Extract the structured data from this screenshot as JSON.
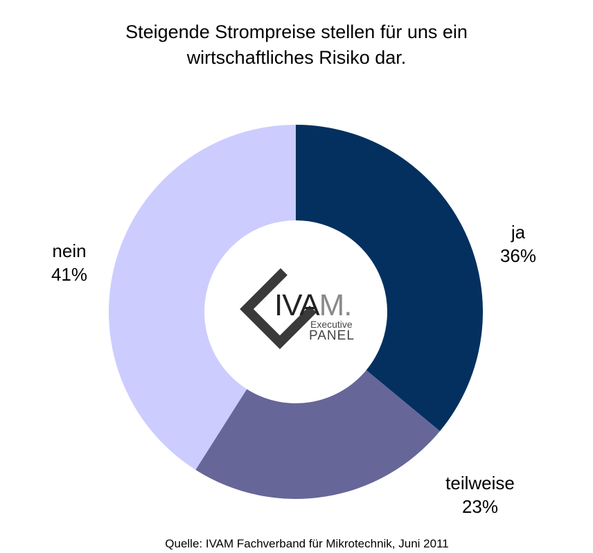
{
  "chart_data": {
    "type": "pie",
    "title_lines": [
      "Steigende Strompreise stellen für uns ein",
      "wirtschaftliches Risiko dar."
    ],
    "slices": [
      {
        "name": "ja",
        "value": 36,
        "label": "36%",
        "color": "#03305f"
      },
      {
        "name": "teilweise",
        "value": 23,
        "label": "23%",
        "color": "#666699"
      },
      {
        "name": "nein",
        "value": 41,
        "label": "41%",
        "color": "#ccccff"
      }
    ],
    "source": "Quelle: IVAM Fachverband für Mikrotechnik, Juni 2011"
  },
  "logo": {
    "ivam": "IVA",
    "m": "M.",
    "executive": "Executive",
    "panel": "PANEL"
  }
}
